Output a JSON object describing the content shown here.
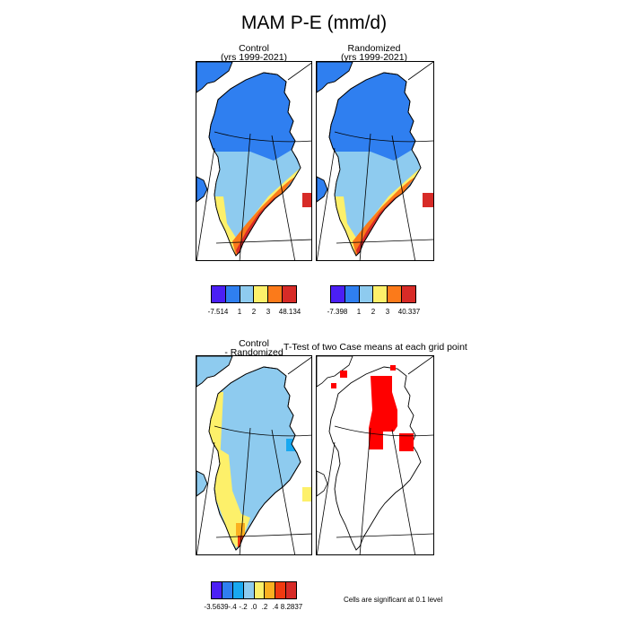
{
  "title": "MAM P-E (mm/d)",
  "panels": {
    "control": {
      "title_line1": "Control",
      "title_line2": "(yrs 1999-2021)"
    },
    "randomized": {
      "title_line1": "Randomized",
      "title_line2": "(yrs 1999-2021)"
    },
    "difference": {
      "title_line1": "Control",
      "title_line2": "- Randomized"
    },
    "ttest": {
      "title": "T-Test of two Case means at each grid point"
    }
  },
  "colorbars": {
    "control": {
      "labels": [
        "-7.514",
        "1",
        "2",
        "3",
        "48.134"
      ],
      "colors": [
        "#4b1ff5",
        "#2f7ff0",
        "#8ecbef",
        "#fdf06a",
        "#fb7a1a",
        "#d72b27"
      ]
    },
    "randomized": {
      "labels": [
        "-7.398",
        "1",
        "2",
        "3",
        "40.337"
      ],
      "colors": [
        "#4b1ff5",
        "#2f7ff0",
        "#8ecbef",
        "#fdf06a",
        "#fb7a1a",
        "#d72b27"
      ]
    },
    "difference": {
      "labels": [
        "-3.5639",
        "-.4",
        "-.2",
        ".0",
        ".2",
        ".4",
        "8.2837"
      ],
      "colors": [
        "#4b1ff5",
        "#2f7ff0",
        "#18a8f0",
        "#8ecbef",
        "#fdf06a",
        "#fbb020",
        "#f03a10",
        "#d72b27"
      ]
    }
  },
  "significance_note": "Cells are significant at 0.1 level",
  "chart_data": [
    {
      "type": "heatmap",
      "title": "Control (yrs 1999-2021)",
      "variable": "MAM P-E (mm/d)",
      "colorbar_min": -7.514,
      "colorbar_max": 48.134,
      "colorbar_ticks": [
        1,
        2,
        3
      ],
      "pattern": "low values (1 or less) over interior/north, 1-2 along east, rising to 3 and above along southern and south-eastern coast"
    },
    {
      "type": "heatmap",
      "title": "Randomized (yrs 1999-2021)",
      "variable": "MAM P-E (mm/d)",
      "colorbar_min": -7.398,
      "colorbar_max": 40.337,
      "colorbar_ticks": [
        1,
        2,
        3
      ],
      "pattern": "similar to Control"
    },
    {
      "type": "heatmap",
      "title": "Control - Randomized",
      "colorbar_min": -3.5639,
      "colorbar_max": 8.2837,
      "colorbar_ticks": [
        -0.4,
        -0.2,
        0.0,
        0.2,
        0.4
      ],
      "pattern": "mostly -0.2 to 0.0 over interior; 0.0 to 0.2 along west coast; 0.4 and above near southern tip"
    },
    {
      "type": "heatmap",
      "title": "T-Test of two Case means at each grid point",
      "legend": "Cells are significant at 0.1 level",
      "pattern": "significant cells in central-northern interior, a small cluster to the east, and scattered cells along the northern coast"
    }
  ]
}
